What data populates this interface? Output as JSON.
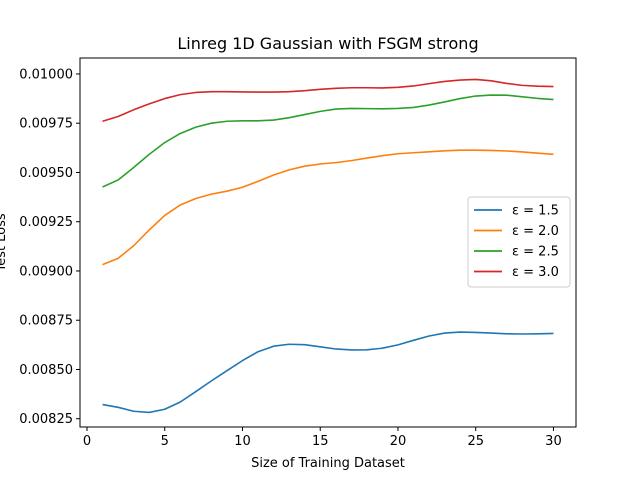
{
  "chart_data": {
    "type": "line",
    "title": "Linreg 1D Gaussian with FSGM strong",
    "xlabel": "Size of Training Dataset",
    "ylabel": "Test Loss",
    "xlim": [
      -0.45,
      31.45
    ],
    "ylim": [
      0.008208,
      0.010081
    ],
    "xticks": [
      0,
      5,
      10,
      15,
      20,
      25,
      30
    ],
    "yticks": [
      0.00825,
      0.0085,
      0.00875,
      0.009,
      0.00925,
      0.0095,
      0.00975,
      0.01
    ],
    "ytick_labels": [
      "0.00825",
      "0.00850",
      "0.00875",
      "0.00900",
      "0.00925",
      "0.00950",
      "0.00975",
      "0.01000"
    ],
    "grid": false,
    "legend_position": "center-right",
    "x": [
      1,
      2,
      3,
      4,
      5,
      6,
      7,
      8,
      9,
      10,
      11,
      12,
      13,
      14,
      15,
      16,
      17,
      18,
      19,
      20,
      21,
      22,
      23,
      24,
      25,
      26,
      27,
      28,
      29,
      30
    ],
    "series": [
      {
        "name": "ε = 1.5",
        "color": "#1f77b4",
        "values": [
          0.008322,
          0.008308,
          0.008288,
          0.008282,
          0.008298,
          0.008335,
          0.008388,
          0.008442,
          0.008494,
          0.008545,
          0.00859,
          0.008618,
          0.008628,
          0.008626,
          0.008615,
          0.008604,
          0.008599,
          0.0086,
          0.008608,
          0.008625,
          0.008648,
          0.00867,
          0.008685,
          0.00869,
          0.008688,
          0.008685,
          0.008681,
          0.00868,
          0.008681,
          0.008683
        ]
      },
      {
        "name": "ε = 2.0",
        "color": "#ff7f0e",
        "values": [
          0.009032,
          0.009064,
          0.009128,
          0.009208,
          0.009282,
          0.009335,
          0.009368,
          0.00939,
          0.009405,
          0.009425,
          0.009455,
          0.009487,
          0.009513,
          0.009532,
          0.009543,
          0.00955,
          0.00956,
          0.009573,
          0.009585,
          0.009595,
          0.0096,
          0.009605,
          0.00961,
          0.009613,
          0.009613,
          0.009612,
          0.009609,
          0.009604,
          0.009598,
          0.009592
        ]
      },
      {
        "name": "ε = 2.5",
        "color": "#2ca02c",
        "values": [
          0.009426,
          0.009462,
          0.009525,
          0.009592,
          0.009652,
          0.009698,
          0.00973,
          0.00975,
          0.00976,
          0.009762,
          0.009762,
          0.009766,
          0.009778,
          0.009794,
          0.00981,
          0.009822,
          0.009825,
          0.009824,
          0.009823,
          0.009825,
          0.00983,
          0.009842,
          0.009858,
          0.009875,
          0.009888,
          0.009893,
          0.009892,
          0.009884,
          0.009876,
          0.00987
        ]
      },
      {
        "name": "ε = 3.0",
        "color": "#d62728",
        "values": [
          0.00976,
          0.009784,
          0.009818,
          0.009848,
          0.009875,
          0.009895,
          0.009906,
          0.00991,
          0.00991,
          0.009909,
          0.009908,
          0.009908,
          0.00991,
          0.009915,
          0.009922,
          0.009927,
          0.00993,
          0.00993,
          0.009929,
          0.009932,
          0.009939,
          0.009951,
          0.009962,
          0.009969,
          0.009972,
          0.009965,
          0.009952,
          0.009942,
          0.009938,
          0.009936
        ]
      }
    ]
  }
}
